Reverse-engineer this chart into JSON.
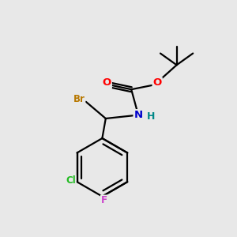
{
  "background_color": "#e8e8e8",
  "atom_colors": {
    "Br": "#b87800",
    "O": "#ff0000",
    "N": "#0000cc",
    "H": "#008888",
    "Cl": "#22bb22",
    "F": "#cc44cc",
    "C": "#000000"
  },
  "bond_color": "#000000",
  "bond_width": 1.6,
  "figsize": [
    3.0,
    3.0
  ],
  "dpi": 100,
  "xlim": [
    0,
    10
  ],
  "ylim": [
    0,
    10
  ]
}
